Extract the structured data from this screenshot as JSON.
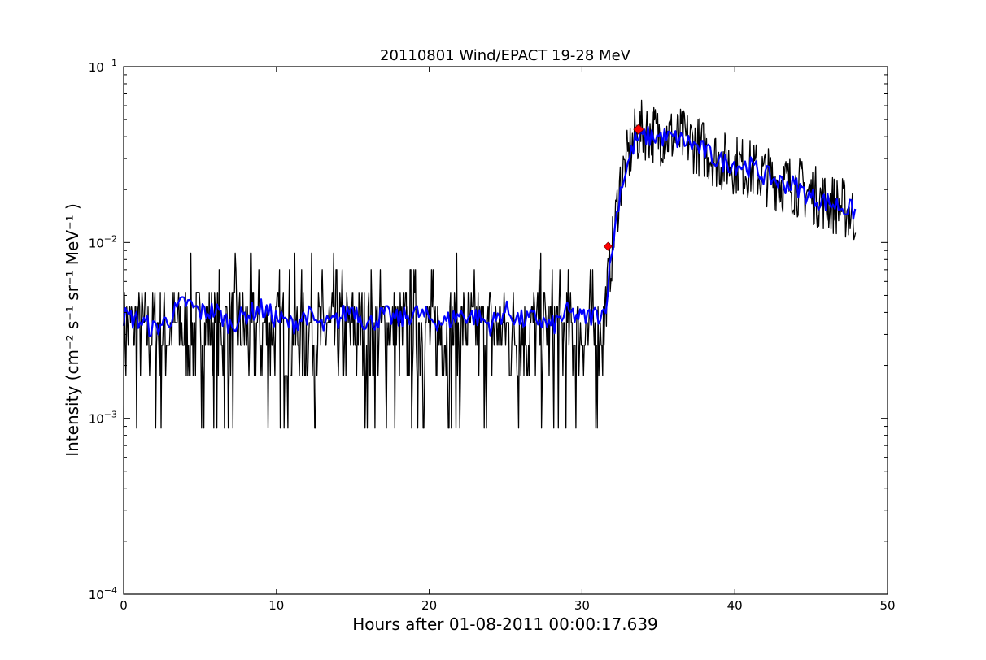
{
  "chart_data": {
    "type": "line",
    "title": "20110801 Wind/EPACT 19-28 MeV",
    "xlabel": "Hours after 01-08-2011 00:00:17.639",
    "ylabel": "Intensity (cm⁻² s⁻¹ sr⁻¹ MeV⁻¹ )",
    "xlim": [
      0,
      50
    ],
    "ylim": [
      0.0001,
      0.1
    ],
    "yscale": "log",
    "grid": false,
    "x_ticks": [
      {
        "value": 0,
        "label": "0"
      },
      {
        "value": 10,
        "label": "10"
      },
      {
        "value": 20,
        "label": "20"
      },
      {
        "value": 30,
        "label": "30"
      },
      {
        "value": 40,
        "label": "40"
      },
      {
        "value": 50,
        "label": "50"
      }
    ],
    "y_ticks": [
      {
        "value": 0.0001,
        "base": "10",
        "exp": "−4"
      },
      {
        "value": 0.001,
        "base": "10",
        "exp": "−3"
      },
      {
        "value": 0.01,
        "base": "10",
        "exp": "−2"
      },
      {
        "value": 0.1,
        "base": "10",
        "exp": "−1"
      }
    ],
    "series": [
      {
        "role": "raw",
        "color": "#000000",
        "x": [
          0,
          1,
          2,
          3,
          4,
          5,
          6,
          7,
          8,
          9,
          10,
          11,
          12,
          13,
          14,
          15,
          16,
          17,
          18,
          19,
          20,
          21,
          22,
          23,
          24,
          25,
          26,
          27,
          28,
          29,
          30,
          31,
          31.5,
          32,
          32.5,
          33,
          33.5,
          34,
          35,
          36,
          37,
          38,
          39,
          40,
          41,
          42,
          43,
          44,
          45,
          46,
          47,
          47.9
        ],
        "y": [
          0.0035,
          0.0042,
          0.0028,
          0.0038,
          0.0045,
          0.0033,
          0.004,
          0.003,
          0.0042,
          0.0036,
          0.0038,
          0.0032,
          0.0041,
          0.0029,
          0.0037,
          0.0044,
          0.0031,
          0.0039,
          0.0035,
          0.0042,
          0.0036,
          0.0033,
          0.004,
          0.0038,
          0.0031,
          0.0043,
          0.0035,
          0.0037,
          0.0032,
          0.0041,
          0.0036,
          0.0038,
          0.0042,
          0.0095,
          0.022,
          0.03,
          0.04,
          0.044,
          0.041,
          0.04,
          0.038,
          0.034,
          0.029,
          0.028,
          0.026,
          0.024,
          0.022,
          0.021,
          0.019,
          0.017,
          0.016,
          0.014
        ],
        "noise_range": [
          0.00088,
          0.0096
        ]
      },
      {
        "role": "smoothed",
        "color": "#0000ff",
        "x": [
          0,
          1,
          2,
          3,
          4,
          5,
          6,
          7,
          8,
          9,
          10,
          11,
          12,
          13,
          14,
          15,
          16,
          17,
          18,
          19,
          20,
          21,
          22,
          23,
          24,
          25,
          26,
          27,
          28,
          29,
          30,
          31,
          31.5,
          32,
          32.5,
          33,
          33.5,
          34,
          35,
          36,
          37,
          38,
          39,
          40,
          41,
          42,
          43,
          44,
          45,
          46,
          47,
          47.9
        ],
        "y": [
          0.0038,
          0.0036,
          0.0032,
          0.0037,
          0.0046,
          0.004,
          0.0041,
          0.0034,
          0.0039,
          0.0042,
          0.0037,
          0.0034,
          0.0039,
          0.0033,
          0.0036,
          0.0043,
          0.0034,
          0.0039,
          0.0036,
          0.004,
          0.0037,
          0.0035,
          0.0039,
          0.0038,
          0.0034,
          0.0041,
          0.0036,
          0.0037,
          0.0033,
          0.004,
          0.0037,
          0.0039,
          0.0041,
          0.0095,
          0.02,
          0.028,
          0.038,
          0.04,
          0.04,
          0.039,
          0.037,
          0.033,
          0.029,
          0.028,
          0.027,
          0.024,
          0.022,
          0.021,
          0.018,
          0.017,
          0.016,
          0.015
        ]
      }
    ],
    "markers": [
      {
        "x": 31.7,
        "y": 0.0095,
        "color": "#ff0000",
        "shape": "diamond"
      },
      {
        "x": 33.7,
        "y": 0.044,
        "color": "#ff0000",
        "shape": "diamond"
      }
    ]
  }
}
